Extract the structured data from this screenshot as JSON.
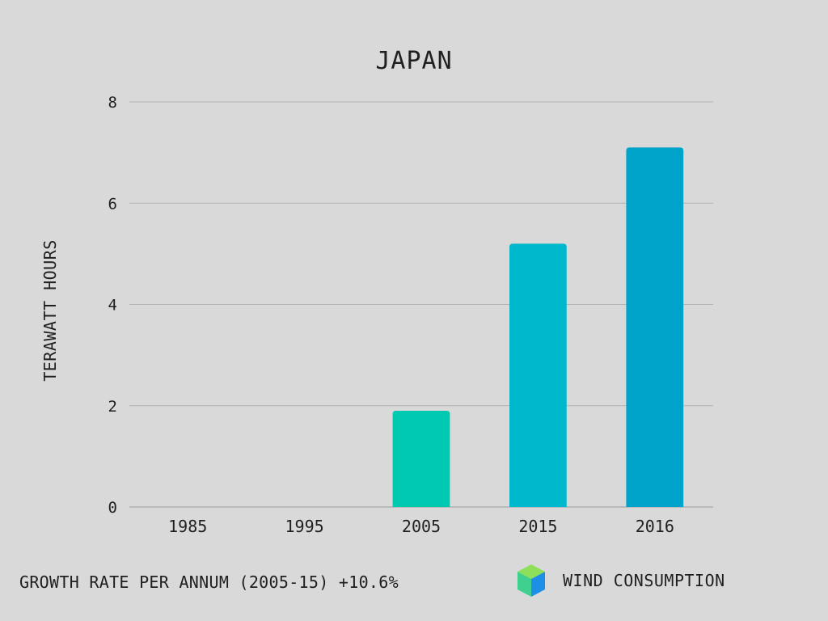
{
  "chart_data": {
    "type": "bar",
    "title": "JAPAN",
    "ylabel": "TERAWATT HOURS",
    "categories": [
      "1985",
      "1995",
      "2005",
      "2015",
      "2016"
    ],
    "values": [
      0,
      0,
      1.9,
      5.2,
      7.1
    ],
    "bar_colors": [
      "#00c9b1",
      "#00c9b1",
      "#00c9b1",
      "#00b8cc",
      "#00a3c9"
    ],
    "ylim": [
      0,
      8
    ],
    "yticks": [
      0,
      2,
      4,
      6,
      8
    ],
    "grid": true
  },
  "footnote": "GROWTH RATE PER ANNUM (2005-15) +10.6%",
  "legend": {
    "label": "WIND CONSUMPTION",
    "icon": "cube-icon"
  }
}
